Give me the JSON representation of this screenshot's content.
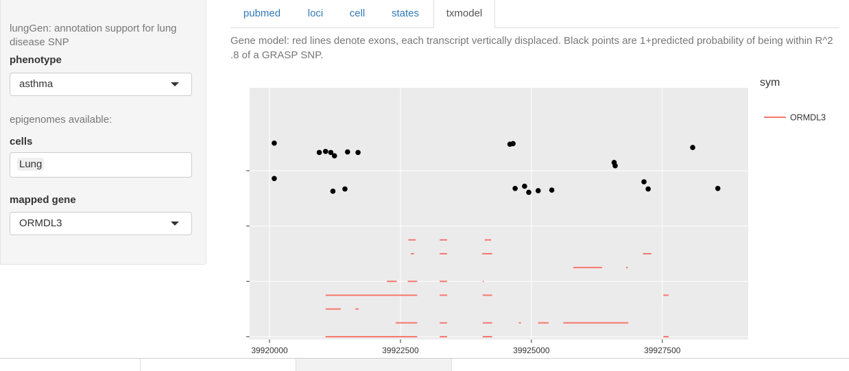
{
  "sidebar": {
    "app_title": "lungGen: annotation support for lung disease SNP",
    "phenotype": {
      "label": "phenotype",
      "value": "asthma"
    },
    "epigenomes_label": "epigenomes available:",
    "cells": {
      "label": "cells",
      "tag": "Lung"
    },
    "mapped_gene": {
      "label": "mapped gene",
      "value": "ORMDL3"
    }
  },
  "tabs": [
    {
      "label": "pubmed",
      "active": false
    },
    {
      "label": "loci",
      "active": false
    },
    {
      "label": "cell",
      "active": false
    },
    {
      "label": "states",
      "active": false
    },
    {
      "label": "txmodel",
      "active": true
    }
  ],
  "description": "Gene model: red lines denote exons, each transcript vertically displaced. Black points are 1+predicted probability of being within R^2 .8 of a GRASP SNP.",
  "chart_data": {
    "type": "scatter",
    "x_range": [
      39919620,
      39929140
    ],
    "y_range": [
      -0.05,
      4.5
    ],
    "x_ticks": [
      39920000,
      39922500,
      39925000,
      39927500
    ],
    "x_tick_labels": [
      "39920000",
      "39922500",
      "39925000",
      "39927500"
    ],
    "y_ticks": [
      0,
      1,
      2,
      3
    ],
    "grid": true,
    "legend": {
      "title": "sym",
      "position": "right",
      "entries": [
        {
          "label": "ORMDL3",
          "color": "#f8766d"
        }
      ]
    },
    "colors": {
      "points": "#000000",
      "exons": "#f8766d",
      "panel": "#ebebeb",
      "grid": "#ffffff"
    },
    "points": [
      [
        39920090,
        3.5
      ],
      [
        39920090,
        2.86
      ],
      [
        39920950,
        3.33
      ],
      [
        39921070,
        3.35
      ],
      [
        39921170,
        3.33
      ],
      [
        39921240,
        3.27
      ],
      [
        39921210,
        2.63
      ],
      [
        39921440,
        2.67
      ],
      [
        39921490,
        3.34
      ],
      [
        39921690,
        3.33
      ],
      [
        39924590,
        3.48
      ],
      [
        39924650,
        3.49
      ],
      [
        39924690,
        2.68
      ],
      [
        39924870,
        2.72
      ],
      [
        39924950,
        2.61
      ],
      [
        39925130,
        2.64
      ],
      [
        39925390,
        2.65
      ],
      [
        39926580,
        3.15
      ],
      [
        39926600,
        3.09
      ],
      [
        39927150,
        2.8
      ],
      [
        39927230,
        2.67
      ],
      [
        39928080,
        3.42
      ],
      [
        39928560,
        2.68
      ]
    ],
    "exons": [
      {
        "y": 1.75,
        "x0": 39922650,
        "x1": 39922790
      },
      {
        "y": 1.75,
        "x0": 39923250,
        "x1": 39923390
      },
      {
        "y": 1.75,
        "x0": 39924110,
        "x1": 39924230
      },
      {
        "y": 1.5,
        "x0": 39922700,
        "x1": 39922760
      },
      {
        "y": 1.5,
        "x0": 39923250,
        "x1": 39923390
      },
      {
        "y": 1.5,
        "x0": 39924060,
        "x1": 39924250
      },
      {
        "y": 1.5,
        "x0": 39927130,
        "x1": 39927290
      },
      {
        "y": 1.25,
        "x0": 39925800,
        "x1": 39926350
      },
      {
        "y": 1.25,
        "x0": 39926810,
        "x1": 39926840
      },
      {
        "y": 1.0,
        "x0": 39922240,
        "x1": 39922430
      },
      {
        "y": 1.0,
        "x0": 39922640,
        "x1": 39922820
      },
      {
        "y": 1.0,
        "x0": 39923250,
        "x1": 39923390
      },
      {
        "y": 1.0,
        "x0": 39924070,
        "x1": 39924090
      },
      {
        "y": 0.75,
        "x0": 39921070,
        "x1": 39922820
      },
      {
        "y": 0.75,
        "x0": 39923250,
        "x1": 39923390
      },
      {
        "y": 0.75,
        "x0": 39924070,
        "x1": 39924250
      },
      {
        "y": 0.75,
        "x0": 39927520,
        "x1": 39927620
      },
      {
        "y": 0.5,
        "x0": 39921070,
        "x1": 39921360
      },
      {
        "y": 0.5,
        "x0": 39921640,
        "x1": 39921700
      },
      {
        "y": 0.25,
        "x0": 39922410,
        "x1": 39922820
      },
      {
        "y": 0.25,
        "x0": 39923250,
        "x1": 39923390
      },
      {
        "y": 0.25,
        "x0": 39924070,
        "x1": 39924250
      },
      {
        "y": 0.25,
        "x0": 39924760,
        "x1": 39924800
      },
      {
        "y": 0.25,
        "x0": 39925130,
        "x1": 39925330
      },
      {
        "y": 0.25,
        "x0": 39925610,
        "x1": 39926850
      },
      {
        "y": 0.0,
        "x0": 39921070,
        "x1": 39922820
      },
      {
        "y": 0.0,
        "x0": 39923250,
        "x1": 39923390
      },
      {
        "y": 0.0,
        "x0": 39924070,
        "x1": 39924250
      },
      {
        "y": 0.0,
        "x0": 39927520,
        "x1": 39927620
      }
    ]
  }
}
